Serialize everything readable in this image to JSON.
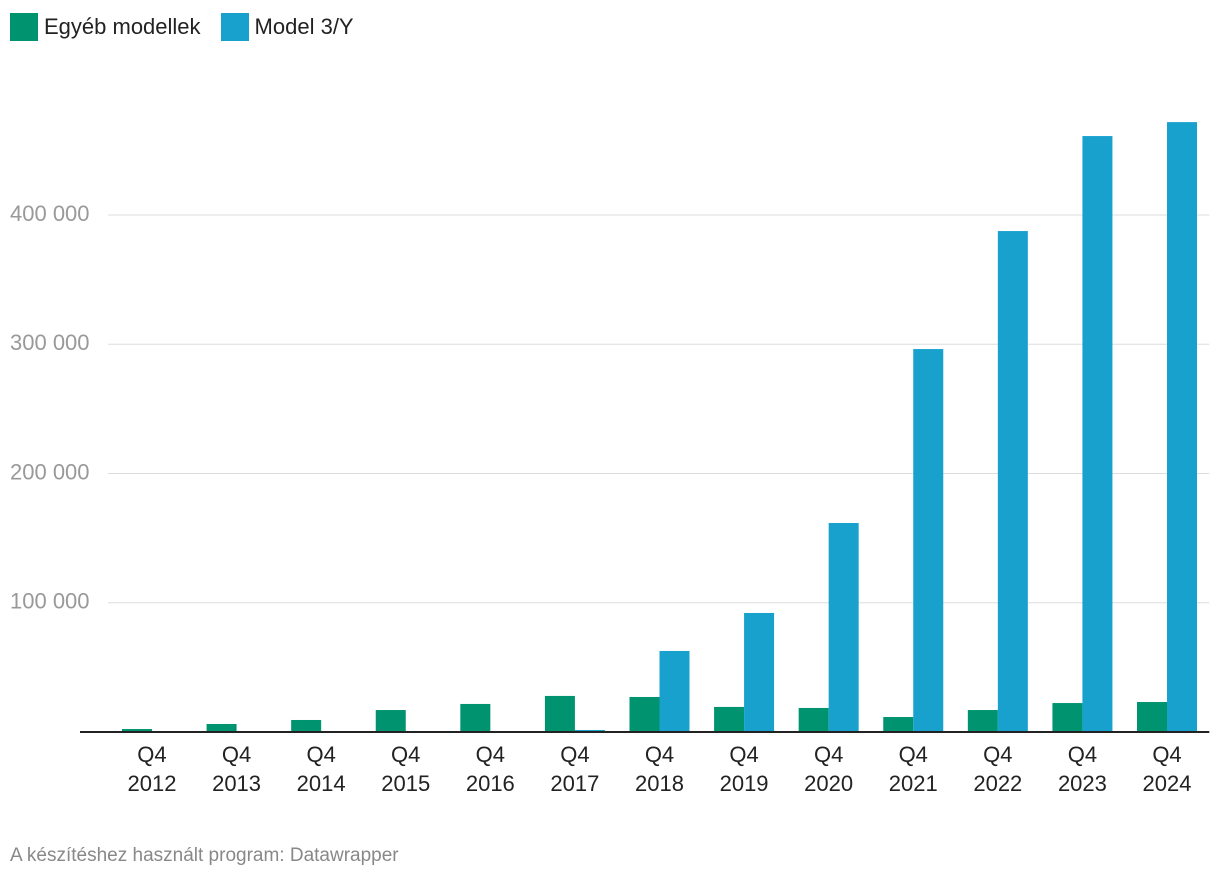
{
  "chart_data": {
    "type": "bar",
    "categories": [
      "Q4 2012",
      "Q4 2013",
      "Q4 2014",
      "Q4 2015",
      "Q4 2016",
      "Q4 2017",
      "Q4 2018",
      "Q4 2019",
      "Q4 2020",
      "Q4 2021",
      "Q4 2022",
      "Q4 2023",
      "Q4 2024"
    ],
    "series": [
      {
        "name": "Egyéb modellek",
        "color": "#00936f",
        "values": [
          2300,
          6200,
          9300,
          17000,
          21700,
          27900,
          27100,
          19400,
          18600,
          11600,
          17000,
          22400,
          23200
        ]
      },
      {
        "name": "Model 3/Y",
        "color": "#18a1cd",
        "values": [
          0,
          0,
          0,
          0,
          0,
          1550,
          62700,
          92100,
          161700,
          296300,
          387600,
          461100,
          471900
        ]
      }
    ],
    "ylim": [
      0,
      489000
    ],
    "yticks": [
      {
        "value": 100000,
        "label": "100 000"
      },
      {
        "value": 200000,
        "label": "200 000"
      },
      {
        "value": 300000,
        "label": "300 000"
      },
      {
        "value": 400000,
        "label": "400 000"
      }
    ],
    "grid": true,
    "legend": "top",
    "footer": "A készítéshez használt program: Datawrapper"
  }
}
